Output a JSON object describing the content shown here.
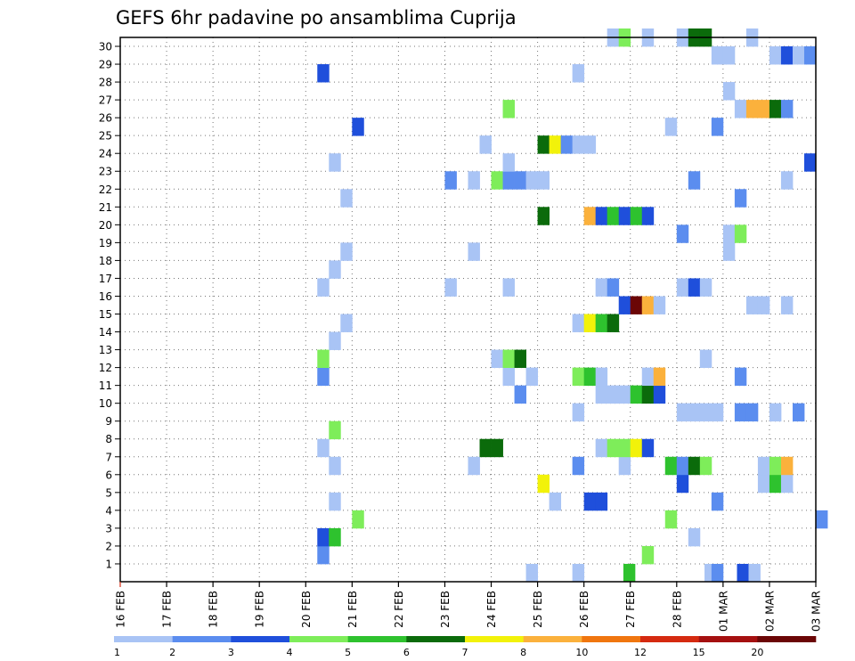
{
  "chart_data": {
    "type": "heatmap",
    "title": "GEFS 6hr padavine po ansamblima Cuprija",
    "xlabel": "",
    "ylabel": "",
    "x_tick_labels": [
      "16 FEB",
      "17 FEB",
      "18 FEB",
      "19 FEB",
      "20 FEB",
      "21 FEB",
      "22 FEB",
      "23 FEB",
      "24 FEB",
      "25 FEB",
      "26 FEB",
      "27 FEB",
      "28 FEB",
      "01 MAR",
      "02 MAR",
      "03 MAR"
    ],
    "y_tick_labels": [
      "1",
      "2",
      "3",
      "4",
      "5",
      "6",
      "7",
      "8",
      "9",
      "10",
      "11",
      "12",
      "13",
      "14",
      "15",
      "16",
      "17",
      "18",
      "19",
      "20",
      "21",
      "22",
      "23",
      "24",
      "25",
      "26",
      "27",
      "28",
      "29",
      "30"
    ],
    "x_range_days": [
      0,
      15
    ],
    "y_range_members": [
      0,
      30
    ],
    "grid": true,
    "colorbar": {
      "position": "bottom",
      "labels": [
        "1",
        "2",
        "3",
        "4",
        "5",
        "6",
        "7",
        "8",
        "10",
        "12",
        "15",
        "20"
      ],
      "colors": [
        "#a9c4f5",
        "#5b8def",
        "#1f4fdb",
        "#7eed5a",
        "#2ec22e",
        "#0b6b0b",
        "#f2f20a",
        "#fbb13c",
        "#f0760f",
        "#d52a10",
        "#a51010",
        "#6b0606"
      ]
    },
    "points": [
      [
        8.75,
        0,
        1
      ],
      [
        9.75,
        0,
        1
      ],
      [
        10.85,
        0,
        5
      ],
      [
        12.6,
        0,
        1
      ],
      [
        12.75,
        0,
        2
      ],
      [
        13.3,
        0,
        3
      ],
      [
        13.55,
        0,
        1
      ],
      [
        4.25,
        1,
        2
      ],
      [
        11.25,
        1,
        4
      ],
      [
        4.25,
        2,
        3
      ],
      [
        4.5,
        2,
        5
      ],
      [
        12.25,
        2,
        1
      ],
      [
        5.0,
        3,
        4
      ],
      [
        11.75,
        3,
        4
      ],
      [
        15.0,
        3,
        2
      ],
      [
        4.5,
        4,
        1
      ],
      [
        9.25,
        4,
        1
      ],
      [
        10.0,
        4,
        3
      ],
      [
        10.25,
        4,
        3
      ],
      [
        12.75,
        4,
        2
      ],
      [
        9.0,
        5,
        7
      ],
      [
        12.0,
        5,
        3
      ],
      [
        13.75,
        5,
        1
      ],
      [
        14.0,
        5,
        5
      ],
      [
        14.25,
        5,
        1
      ],
      [
        4.5,
        6,
        1
      ],
      [
        7.5,
        6,
        1
      ],
      [
        9.75,
        6,
        2
      ],
      [
        10.75,
        6,
        1
      ],
      [
        11.75,
        6,
        5
      ],
      [
        12.0,
        6,
        2
      ],
      [
        12.25,
        6,
        6
      ],
      [
        12.5,
        6,
        4
      ],
      [
        13.75,
        6,
        1
      ],
      [
        14.0,
        6,
        4
      ],
      [
        14.25,
        6,
        8
      ],
      [
        4.25,
        7,
        1
      ],
      [
        7.75,
        7,
        6
      ],
      [
        8.0,
        7,
        6
      ],
      [
        10.25,
        7,
        1
      ],
      [
        10.5,
        7,
        4
      ],
      [
        10.75,
        7,
        4
      ],
      [
        11.0,
        7,
        7
      ],
      [
        11.25,
        7,
        3
      ],
      [
        4.5,
        8,
        4
      ],
      [
        9.75,
        9,
        1
      ],
      [
        12.0,
        9,
        1
      ],
      [
        12.25,
        9,
        1
      ],
      [
        12.5,
        9,
        1
      ],
      [
        12.75,
        9,
        1
      ],
      [
        13.25,
        9,
        2
      ],
      [
        13.5,
        9,
        2
      ],
      [
        14.0,
        9,
        1
      ],
      [
        14.5,
        9,
        2
      ],
      [
        8.5,
        10,
        2
      ],
      [
        10.25,
        10,
        1
      ],
      [
        10.5,
        10,
        1
      ],
      [
        10.75,
        10,
        1
      ],
      [
        11.0,
        10,
        5
      ],
      [
        11.25,
        10,
        6
      ],
      [
        11.5,
        10,
        3
      ],
      [
        4.25,
        11,
        2
      ],
      [
        8.25,
        11,
        1
      ],
      [
        8.75,
        11,
        1
      ],
      [
        9.75,
        11,
        4
      ],
      [
        10.0,
        11,
        5
      ],
      [
        10.25,
        11,
        1
      ],
      [
        11.25,
        11,
        1
      ],
      [
        11.5,
        11,
        8
      ],
      [
        13.25,
        11,
        2
      ],
      [
        4.25,
        12,
        4
      ],
      [
        8.0,
        12,
        1
      ],
      [
        8.25,
        12,
        4
      ],
      [
        8.5,
        12,
        6
      ],
      [
        12.5,
        12,
        1
      ],
      [
        4.5,
        13,
        1
      ],
      [
        4.75,
        14,
        1
      ],
      [
        9.75,
        14,
        1
      ],
      [
        10.0,
        14,
        7
      ],
      [
        10.25,
        14,
        5
      ],
      [
        10.5,
        14,
        6
      ],
      [
        10.75,
        15,
        3
      ],
      [
        11.0,
        15,
        12
      ],
      [
        11.25,
        15,
        8
      ],
      [
        11.5,
        15,
        1
      ],
      [
        13.5,
        15,
        1
      ],
      [
        13.75,
        15,
        1
      ],
      [
        14.25,
        15,
        1
      ],
      [
        4.25,
        16,
        1
      ],
      [
        7.0,
        16,
        1
      ],
      [
        8.25,
        16,
        1
      ],
      [
        10.25,
        16,
        1
      ],
      [
        10.5,
        16,
        2
      ],
      [
        12.0,
        16,
        1
      ],
      [
        12.25,
        16,
        3
      ],
      [
        12.5,
        16,
        1
      ],
      [
        4.5,
        17,
        1
      ],
      [
        4.75,
        18,
        1
      ],
      [
        7.5,
        18,
        1
      ],
      [
        13.0,
        18,
        1
      ],
      [
        12.0,
        19,
        2
      ],
      [
        13.0,
        19,
        1
      ],
      [
        13.25,
        19,
        4
      ],
      [
        9.0,
        20,
        6
      ],
      [
        10.0,
        20,
        8
      ],
      [
        10.25,
        20,
        3
      ],
      [
        10.5,
        20,
        5
      ],
      [
        10.75,
        20,
        3
      ],
      [
        11.0,
        20,
        5
      ],
      [
        11.25,
        20,
        3
      ],
      [
        4.75,
        21,
        1
      ],
      [
        13.25,
        21,
        2
      ],
      [
        7.0,
        22,
        2
      ],
      [
        7.5,
        22,
        1
      ],
      [
        8.0,
        22,
        4
      ],
      [
        8.25,
        22,
        2
      ],
      [
        8.5,
        22,
        2
      ],
      [
        8.75,
        22,
        1
      ],
      [
        9.0,
        22,
        1
      ],
      [
        12.25,
        22,
        2
      ],
      [
        14.25,
        22,
        1
      ],
      [
        4.5,
        23,
        1
      ],
      [
        8.25,
        23,
        1
      ],
      [
        14.75,
        23,
        3
      ],
      [
        7.75,
        24,
        1
      ],
      [
        9.0,
        24,
        6
      ],
      [
        9.25,
        24,
        7
      ],
      [
        9.5,
        24,
        2
      ],
      [
        9.75,
        24,
        1
      ],
      [
        10.0,
        24,
        1
      ],
      [
        5.0,
        25,
        3
      ],
      [
        11.75,
        25,
        1
      ],
      [
        12.75,
        25,
        2
      ],
      [
        8.25,
        26,
        4
      ],
      [
        13.25,
        26,
        1
      ],
      [
        13.5,
        26,
        8
      ],
      [
        13.75,
        26,
        8
      ],
      [
        14.0,
        26,
        6
      ],
      [
        14.25,
        26,
        2
      ],
      [
        13.0,
        27,
        1
      ],
      [
        4.25,
        28,
        3
      ],
      [
        9.75,
        28,
        1
      ],
      [
        12.75,
        29,
        1
      ],
      [
        13.0,
        29,
        1
      ],
      [
        14.0,
        29,
        1
      ],
      [
        14.25,
        29,
        3
      ],
      [
        14.5,
        29,
        1
      ],
      [
        14.75,
        29,
        2
      ],
      [
        10.5,
        30,
        1
      ],
      [
        10.75,
        30,
        4
      ],
      [
        11.25,
        30,
        1
      ],
      [
        12.0,
        30,
        1
      ],
      [
        12.25,
        30,
        6
      ],
      [
        12.5,
        30,
        6
      ],
      [
        13.5,
        30,
        1
      ]
    ]
  }
}
